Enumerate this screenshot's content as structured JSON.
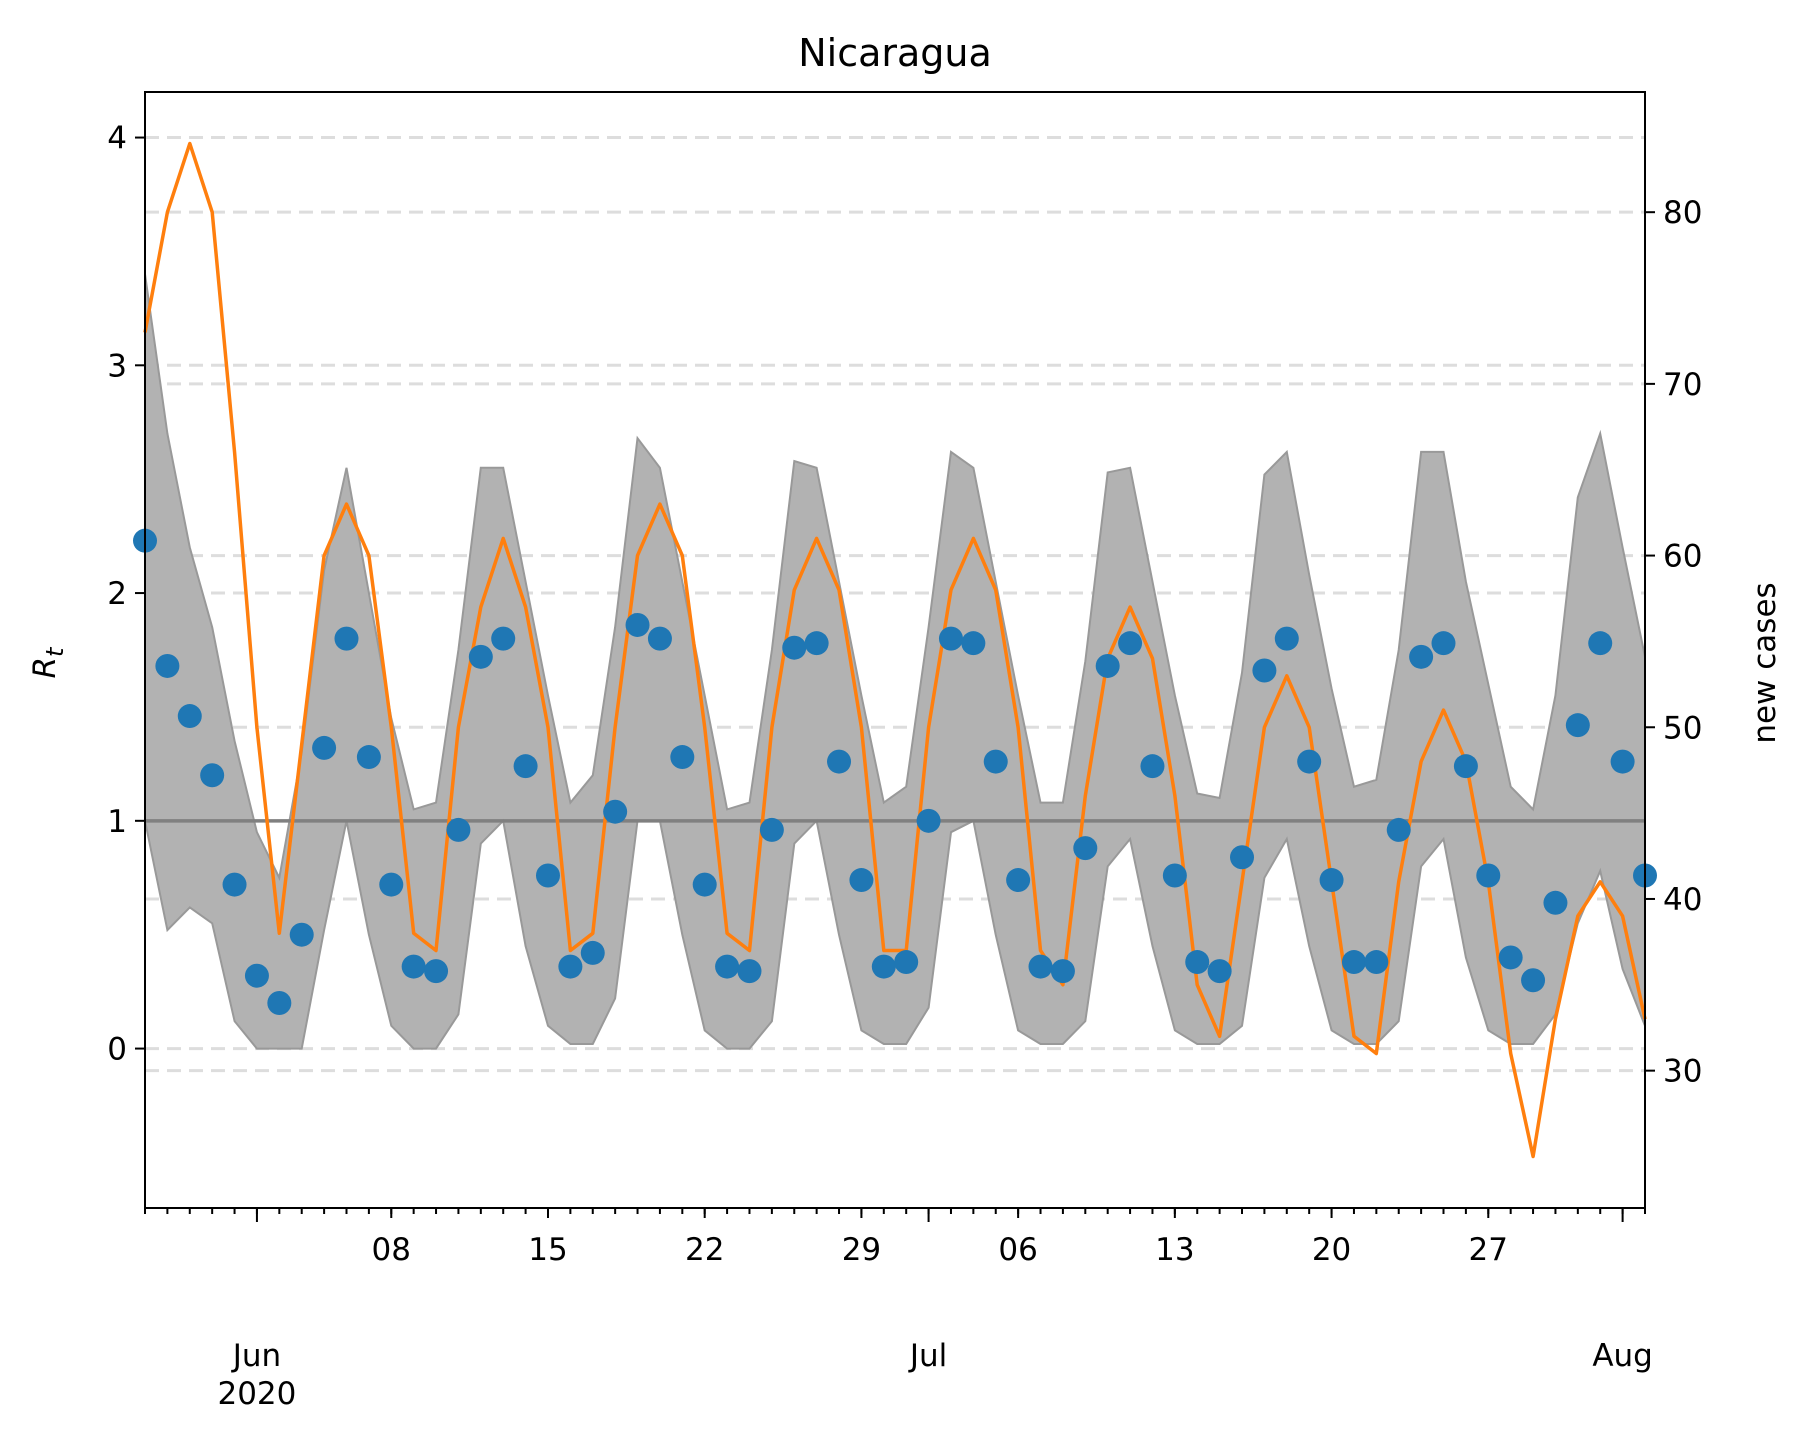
{
  "chart_data": {
    "type": "line",
    "title": "Nicaragua",
    "ylabel_left": "R",
    "ylabel_left_subscript": "t",
    "ylabel_right": "new cases",
    "ylim_left": [
      -0.7,
      4.2
    ],
    "ylim_right": [
      22.0,
      87.0
    ],
    "left_ticks": [
      0,
      1,
      2,
      3,
      4
    ],
    "left_tick_labels": [
      "0",
      "1",
      "2",
      "3",
      "4"
    ],
    "right_ticks": [
      30,
      40,
      50,
      60,
      70,
      80
    ],
    "right_tick_labels": [
      "30",
      "40",
      "50",
      "60",
      "70",
      "80"
    ],
    "x_minor_labels": [
      {
        "day": 11,
        "label": "08"
      },
      {
        "day": 18,
        "label": "15"
      },
      {
        "day": 25,
        "label": "22"
      },
      {
        "day": 32,
        "label": "29"
      },
      {
        "day": 39,
        "label": "06"
      },
      {
        "day": 46,
        "label": "13"
      },
      {
        "day": 53,
        "label": "20"
      },
      {
        "day": 60,
        "label": "27"
      }
    ],
    "x_major_labels": [
      {
        "day": 5,
        "label": "Jun",
        "sublabel": "2020"
      },
      {
        "day": 35,
        "label": "Jul",
        "sublabel": ""
      },
      {
        "day": 66,
        "label": "Aug",
        "sublabel": ""
      }
    ],
    "x_start_date": "2020-05-27",
    "reference_line": 1,
    "grid": "horizontal dashed",
    "colors": {
      "rt_points": "#1f77b4",
      "new_cases_line": "#ff7f0e",
      "band_fill": "#b2b2b2",
      "band_edge": "#999999",
      "reference_line": "#808080",
      "grid": "#dddddd"
    },
    "rt": [
      2.23,
      1.68,
      1.46,
      1.2,
      0.72,
      0.32,
      0.2,
      0.5,
      1.32,
      1.8,
      1.28,
      0.72,
      0.36,
      0.34,
      0.96,
      1.72,
      1.8,
      1.24,
      0.76,
      0.36,
      0.42,
      1.04,
      1.86,
      1.8,
      1.28,
      0.72,
      0.36,
      0.34,
      0.96,
      1.76,
      1.78,
      1.26,
      0.74,
      0.36,
      0.38,
      1.0,
      1.8,
      1.78,
      1.26,
      0.74,
      0.36,
      0.34,
      0.88,
      1.68,
      1.78,
      1.24,
      0.76,
      0.38,
      0.34,
      0.84,
      1.66,
      1.8,
      1.26,
      0.74,
      0.38,
      0.38,
      0.96,
      1.72,
      1.78,
      1.24,
      0.76,
      0.4,
      0.3,
      0.64,
      1.42,
      1.78,
      1.26,
      0.76
    ],
    "rt_upper": [
      3.4,
      2.7,
      2.2,
      1.85,
      1.35,
      0.95,
      0.75,
      1.3,
      2.1,
      2.55,
      2.0,
      1.45,
      1.05,
      1.08,
      1.75,
      2.55,
      2.55,
      2.05,
      1.55,
      1.08,
      1.2,
      1.85,
      2.68,
      2.55,
      2.05,
      1.55,
      1.05,
      1.08,
      1.75,
      2.58,
      2.55,
      2.05,
      1.55,
      1.08,
      1.15,
      1.85,
      2.62,
      2.55,
      2.05,
      1.55,
      1.08,
      1.08,
      1.7,
      2.53,
      2.55,
      2.05,
      1.55,
      1.12,
      1.1,
      1.65,
      2.52,
      2.62,
      2.08,
      1.58,
      1.15,
      1.18,
      1.75,
      2.62,
      2.62,
      2.05,
      1.6,
      1.15,
      1.05,
      1.55,
      2.42,
      2.7,
      2.2,
      1.72
    ],
    "rt_lower": [
      1.0,
      0.52,
      0.62,
      0.55,
      0.12,
      0.0,
      0.0,
      0.0,
      0.52,
      1.0,
      0.5,
      0.1,
      0.0,
      0.0,
      0.15,
      0.9,
      1.0,
      0.45,
      0.1,
      0.02,
      0.02,
      0.22,
      1.0,
      1.0,
      0.5,
      0.08,
      0.0,
      0.0,
      0.12,
      0.9,
      1.0,
      0.5,
      0.08,
      0.02,
      0.02,
      0.18,
      0.95,
      1.0,
      0.5,
      0.08,
      0.02,
      0.02,
      0.12,
      0.8,
      0.92,
      0.45,
      0.08,
      0.02,
      0.02,
      0.1,
      0.75,
      0.92,
      0.45,
      0.08,
      0.02,
      0.02,
      0.12,
      0.8,
      0.92,
      0.4,
      0.08,
      0.02,
      0.02,
      0.15,
      0.55,
      0.78,
      0.35,
      0.1
    ],
    "new_cases": [
      73,
      80,
      84,
      80,
      66,
      50,
      38,
      49,
      60,
      63,
      60,
      50,
      38,
      37,
      50,
      57,
      61,
      57,
      50,
      37,
      38,
      50,
      60,
      63,
      60,
      50,
      38,
      37,
      50,
      58,
      61,
      58,
      50,
      37,
      37,
      50,
      58,
      61,
      58,
      50,
      37,
      35,
      46,
      54,
      57,
      54,
      46,
      35,
      32,
      41,
      50,
      53,
      50,
      41,
      32,
      31,
      41,
      48,
      51,
      48,
      41,
      31,
      25,
      33,
      39,
      41,
      39,
      33
    ]
  }
}
